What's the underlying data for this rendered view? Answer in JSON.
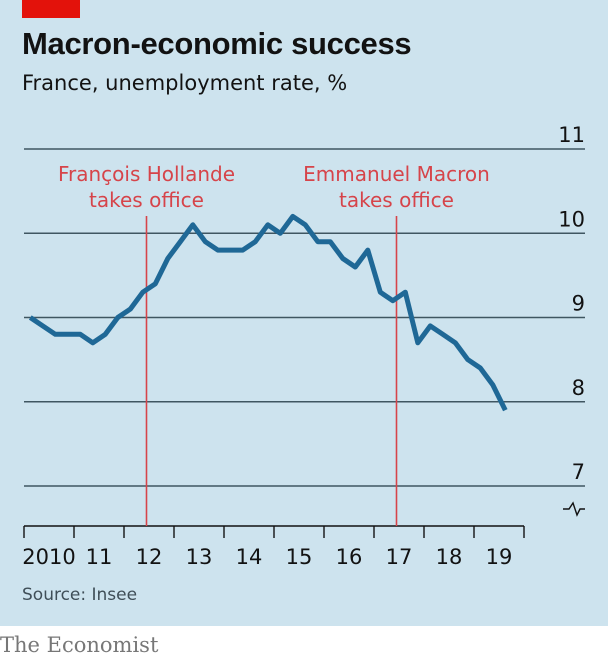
{
  "brand_tag_color": "#e3120b",
  "title": "Macron-economic success",
  "subtitle": "France, unemployment rate, %",
  "source": "Source: Insee",
  "publisher": "The Economist",
  "chart_data": {
    "type": "line",
    "title": "Macron-economic success",
    "subtitle": "France, unemployment rate, %",
    "xlabel": "",
    "ylabel": "",
    "ylim": [
      7,
      11
    ],
    "xlim": [
      2010,
      2020
    ],
    "y_ticks": [
      "7",
      "8",
      "9",
      "10",
      "11"
    ],
    "x_ticks": [
      "2010",
      "11",
      "12",
      "13",
      "14",
      "15",
      "16",
      "17",
      "18",
      "19"
    ],
    "grid": true,
    "y_axis_broken": true,
    "line_color": "#1f6896",
    "annotation_color": "#d6444a",
    "annotations": [
      {
        "x": 2012.45,
        "line1": "François Hollande",
        "line2": "takes office"
      },
      {
        "x": 2017.45,
        "line1": "Emmanuel Macron",
        "line2": "takes office"
      }
    ],
    "series": [
      {
        "x": [
          2010.125,
          2010.375,
          2010.625,
          2010.875,
          2011.125,
          2011.375,
          2011.625,
          2011.875,
          2012.125,
          2012.375,
          2012.625,
          2012.875,
          2013.125,
          2013.375,
          2013.625,
          2013.875,
          2014.125,
          2014.375,
          2014.625,
          2014.875,
          2015.125,
          2015.375,
          2015.625,
          2015.875,
          2016.125,
          2016.375,
          2016.625,
          2016.875,
          2017.125,
          2017.375,
          2017.625,
          2017.875,
          2018.125,
          2018.375,
          2018.625,
          2018.875,
          2019.125,
          2019.375,
          2019.625
        ],
        "values": [
          9.0,
          8.9,
          8.8,
          8.8,
          8.8,
          8.7,
          8.8,
          9.0,
          9.1,
          9.3,
          9.4,
          9.7,
          9.9,
          10.1,
          9.9,
          9.8,
          9.8,
          9.8,
          9.9,
          10.1,
          10.0,
          10.2,
          10.1,
          9.9,
          9.9,
          9.7,
          9.6,
          9.8,
          9.3,
          9.2,
          9.3,
          8.7,
          8.9,
          8.8,
          8.7,
          8.5,
          8.4,
          8.2,
          7.9
        ]
      }
    ]
  }
}
